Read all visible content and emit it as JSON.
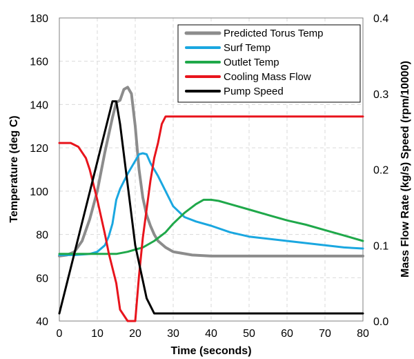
{
  "chart_data": {
    "type": "line",
    "xlabel": "Time (seconds)",
    "ylabel": "Temperature (deg C)",
    "y2label": "Mass Flow Rate (kg/s) Speed (rpm/10000)",
    "xlim": [
      0,
      80
    ],
    "ylim": [
      40,
      180
    ],
    "y2lim": [
      0,
      0.4
    ],
    "x_ticks": [
      "0",
      "10",
      "20",
      "30",
      "40",
      "50",
      "60",
      "70",
      "80"
    ],
    "y_ticks": [
      "40",
      "60",
      "80",
      "100",
      "120",
      "140",
      "160",
      "180"
    ],
    "y2_ticks": [
      "0.0",
      "0.1",
      "0.2",
      "0.3",
      "0.4"
    ],
    "grid": true,
    "legend_position": "top-right",
    "series": [
      {
        "name": "Predicted Torus Temp",
        "axis": "left",
        "color": "#8c8c8c",
        "width": 4,
        "x": [
          0,
          2,
          4,
          6,
          8,
          10,
          12,
          13,
          14,
          15,
          16,
          17,
          18,
          19,
          20,
          21,
          22,
          23,
          24,
          25,
          26,
          28,
          30,
          35,
          40,
          50,
          60,
          70,
          80
        ],
        "y": [
          70,
          70.5,
          72,
          77,
          87,
          100,
          118,
          126,
          134,
          141,
          142,
          147,
          148,
          145,
          130,
          110,
          97,
          89,
          84,
          80,
          77,
          74,
          72,
          70.5,
          70,
          70,
          70,
          70,
          70
        ]
      },
      {
        "name": "Surf Temp",
        "axis": "left",
        "color": "#1aa7e0",
        "width": 3,
        "x": [
          0,
          4,
          8,
          10,
          12,
          13,
          14,
          15,
          16,
          18,
          20,
          21,
          22,
          23,
          24,
          25,
          26,
          28,
          30,
          33,
          36,
          40,
          45,
          50,
          60,
          70,
          75,
          80
        ],
        "y": [
          70.5,
          70.5,
          71,
          72,
          75,
          79,
          85,
          96,
          101,
          108,
          114,
          117,
          117.5,
          117,
          113,
          110,
          107,
          100,
          93,
          88,
          86,
          84,
          81,
          79,
          77,
          75,
          74,
          73.5
        ]
      },
      {
        "name": "Outlet Temp",
        "axis": "left",
        "color": "#1fa84a",
        "width": 3,
        "x": [
          0,
          5,
          10,
          15,
          18,
          20,
          22,
          25,
          28,
          30,
          33,
          36,
          38,
          40,
          42,
          45,
          50,
          55,
          60,
          65,
          70,
          75,
          80
        ],
        "y": [
          71,
          71,
          71,
          71,
          72,
          73,
          74,
          77,
          81,
          85,
          90,
          94,
          96,
          96,
          95.5,
          94,
          91.5,
          89,
          86.5,
          84.5,
          82,
          79.5,
          77
        ]
      },
      {
        "name": "Cooling Mass Flow",
        "axis": "right",
        "color": "#e8141c",
        "width": 3,
        "x": [
          0,
          3,
          5,
          7,
          8,
          10,
          12,
          13,
          14,
          15,
          16,
          18,
          19,
          20,
          21,
          22,
          24,
          25,
          26,
          27,
          28,
          30,
          40,
          50,
          60,
          70,
          80
        ],
        "y": [
          0.235,
          0.235,
          0.23,
          0.215,
          0.2,
          0.16,
          0.115,
          0.09,
          0.07,
          0.05,
          0.015,
          0.0,
          0.0,
          0.0,
          0.06,
          0.11,
          0.185,
          0.215,
          0.235,
          0.26,
          0.27,
          0.27,
          0.27,
          0.27,
          0.27,
          0.27,
          0.27
        ]
      },
      {
        "name": "Pump Speed",
        "axis": "right",
        "color": "#000000",
        "width": 3,
        "x": [
          0,
          14,
          15,
          16,
          20,
          23,
          25,
          30,
          40,
          50,
          60,
          70,
          80
        ],
        "y": [
          0.01,
          0.29,
          0.29,
          0.26,
          0.1,
          0.03,
          0.01,
          0.01,
          0.01,
          0.01,
          0.01,
          0.01,
          0.01
        ]
      }
    ]
  }
}
